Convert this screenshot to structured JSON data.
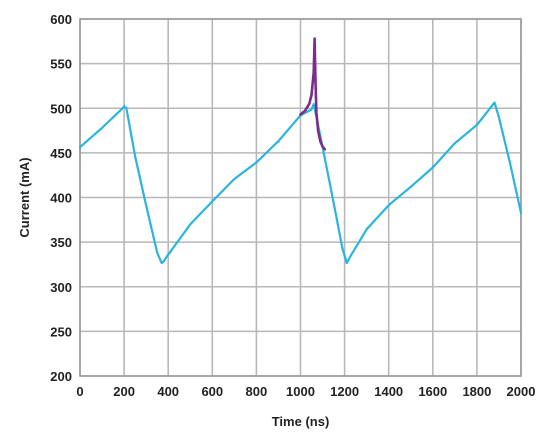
{
  "chart_data": {
    "type": "line",
    "title": "",
    "xlabel": "Time (ns)",
    "ylabel": "Current (mA)",
    "xlim": [
      0,
      2000
    ],
    "ylim": [
      200,
      600
    ],
    "x_ticks": [
      0,
      200,
      400,
      600,
      800,
      1000,
      1200,
      1400,
      1600,
      1800,
      2000
    ],
    "y_ticks": [
      200,
      250,
      300,
      350,
      400,
      450,
      500,
      550,
      600
    ],
    "x_tick_labels": [
      "0",
      "200",
      "400",
      "600",
      "800",
      "1000",
      "1200",
      "1400",
      "1600",
      "1800",
      "2000"
    ],
    "y_tick_labels": [
      "200",
      "250",
      "300",
      "350",
      "400",
      "450",
      "500",
      "550",
      "600"
    ],
    "grid": true,
    "legend": "none",
    "series": [
      {
        "color": "#2bb5dc",
        "x": [
          0,
          100,
          200,
          210,
          250,
          300,
          350,
          370,
          380,
          395,
          410,
          500,
          600,
          700,
          800,
          900,
          1000,
          1050,
          1060,
          1090,
          1150,
          1190,
          1210,
          1230,
          1300,
          1400,
          1500,
          1600,
          1700,
          1800,
          1880,
          1900,
          1950,
          2000
        ],
        "y": [
          455,
          478,
          503,
          500,
          447,
          390,
          338,
          328,
          328,
          335,
          338,
          370,
          397,
          420,
          440,
          462,
          492,
          500,
          504,
          470,
          393,
          343,
          328,
          335,
          365,
          390,
          412,
          435,
          460,
          482,
          505,
          490,
          440,
          382
        ]
      },
      {
        "color": "#7b2d8e",
        "x": [
          1000,
          1020,
          1040,
          1050,
          1060,
          1064,
          1068,
          1072,
          1080,
          1090,
          1100,
          1110
        ],
        "y": [
          493,
          497,
          505,
          515,
          540,
          578,
          530,
          495,
          475,
          463,
          457,
          454
        ]
      }
    ]
  }
}
